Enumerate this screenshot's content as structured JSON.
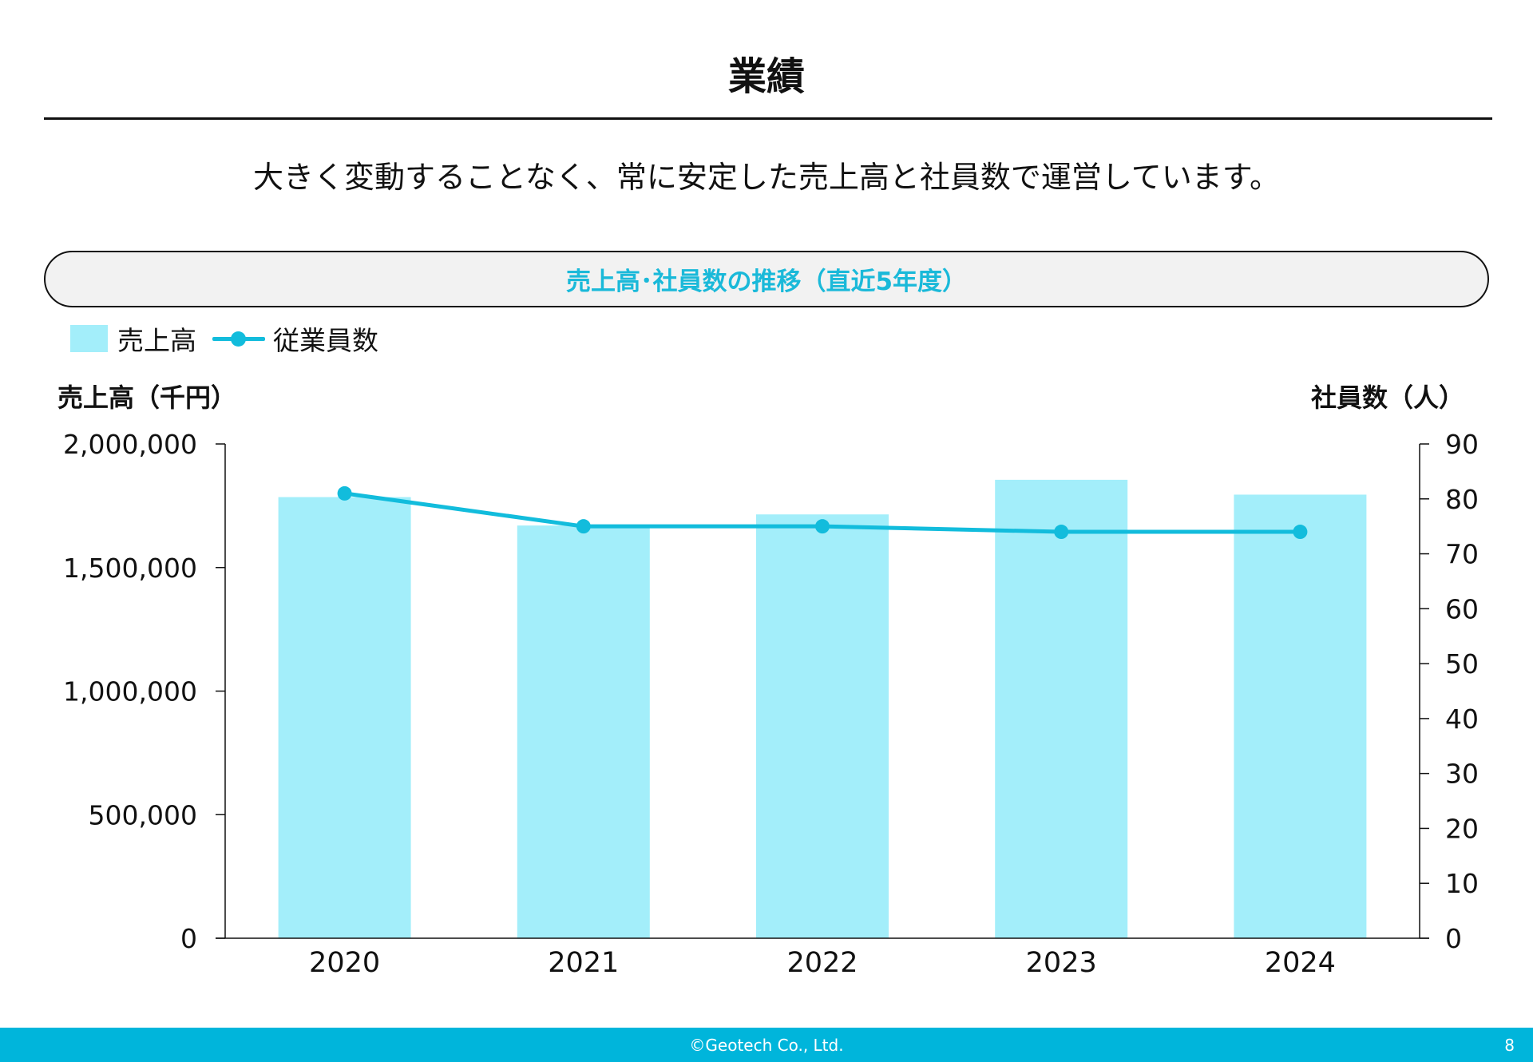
{
  "page": {
    "title": "業績",
    "lead": "大きく変動することなく、常に安定した売上高と社員数で運営しています。"
  },
  "chart_data": {
    "type": "bar+line",
    "title": "売上高･社員数の推移（直近5年度）",
    "categories": [
      "2020",
      "2021",
      "2022",
      "2023",
      "2024"
    ],
    "series": [
      {
        "name": "売上高",
        "type": "bar",
        "axis": "left",
        "color": "#a3eefa",
        "values": [
          1785000,
          1670000,
          1715000,
          1855000,
          1795000
        ]
      },
      {
        "name": "従業員数",
        "type": "line",
        "axis": "right",
        "color": "#12bcdc",
        "values": [
          81,
          75,
          75,
          74,
          74
        ]
      }
    ],
    "ylabel_left": "売上高（千円）",
    "ylabel_right": "社員数（人）",
    "ylim_left": [
      0,
      2000000
    ],
    "ylim_right": [
      0,
      90
    ],
    "yticks_left": [
      "0",
      "500,000",
      "1,000,000",
      "1,500,000",
      "2,000,000"
    ],
    "yticks_right": [
      "0",
      "10",
      "20",
      "30",
      "40",
      "50",
      "60",
      "70",
      "80",
      "90"
    ],
    "legend_position": "top-left",
    "grid": false
  },
  "footer": {
    "copyright": "©Geotech Co., Ltd.",
    "page_number": "8"
  }
}
